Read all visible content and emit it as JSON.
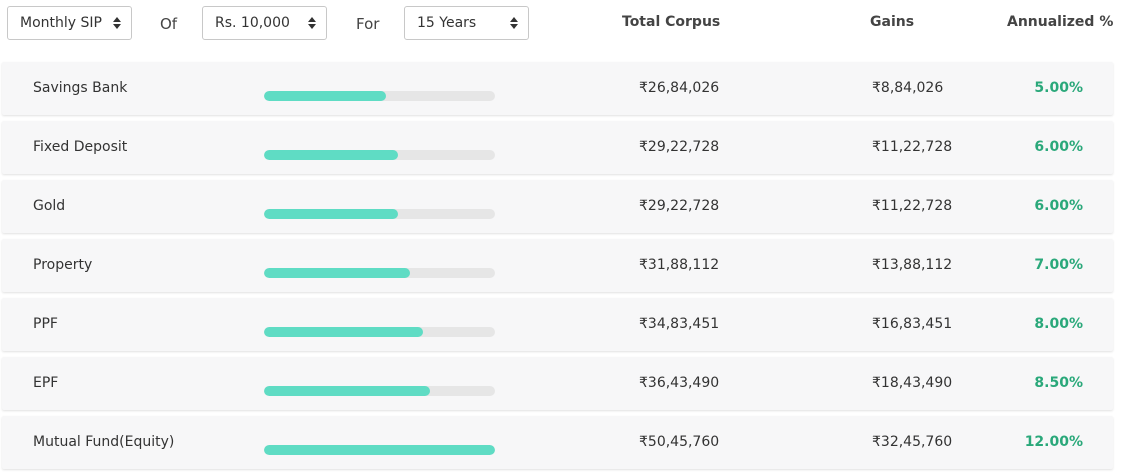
{
  "controls": {
    "frequency": {
      "selected": "Monthly SIP"
    },
    "of_label": "Of",
    "amount": {
      "selected": "Rs. 10,000"
    },
    "for_label": "For",
    "duration": {
      "selected": "15 Years"
    }
  },
  "columns": {
    "total_corpus": "Total Corpus",
    "gains": "Gains",
    "annualized": "Annualized %"
  },
  "colors": {
    "bar": "#5fdcc4",
    "track": "#e6e6e6",
    "rate": "#2aa87a"
  },
  "rows": [
    {
      "name": "Savings Bank",
      "progress_pct": 53,
      "total_corpus": "₹26,84,026",
      "gains": "₹8,84,026",
      "annualized": "5.00%"
    },
    {
      "name": "Fixed Deposit",
      "progress_pct": 58,
      "total_corpus": "₹29,22,728",
      "gains": "₹11,22,728",
      "annualized": "6.00%"
    },
    {
      "name": "Gold",
      "progress_pct": 58,
      "total_corpus": "₹29,22,728",
      "gains": "₹11,22,728",
      "annualized": "6.00%"
    },
    {
      "name": "Property",
      "progress_pct": 63,
      "total_corpus": "₹31,88,112",
      "gains": "₹13,88,112",
      "annualized": "7.00%"
    },
    {
      "name": "PPF",
      "progress_pct": 69,
      "total_corpus": "₹34,83,451",
      "gains": "₹16,83,451",
      "annualized": "8.00%"
    },
    {
      "name": "EPF",
      "progress_pct": 72,
      "total_corpus": "₹36,43,490",
      "gains": "₹18,43,490",
      "annualized": "8.50%"
    },
    {
      "name": "Mutual Fund(Equity)",
      "progress_pct": 100,
      "total_corpus": "₹50,45,760",
      "gains": "₹32,45,760",
      "annualized": "12.00%"
    }
  ]
}
